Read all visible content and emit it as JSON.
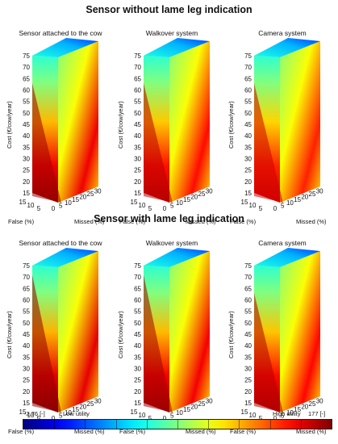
{
  "chart_data": {
    "type": "3d-surface",
    "groups": [
      {
        "title": "Sensor without lame leg indication",
        "panels": [
          {
            "title": "Sensor attached to the cow",
            "peak_utility": 0.95,
            "peak_x": 0.0,
            "peak_z": 0.2
          },
          {
            "title": "Walkover system",
            "peak_utility": 0.82,
            "peak_x": 0.0,
            "peak_z": 0.2
          },
          {
            "title": "Camera system",
            "peak_utility": 0.72,
            "peak_x": 0.0,
            "peak_z": 0.2
          }
        ]
      },
      {
        "title": "Sensor with lame leg indication",
        "panels": [
          {
            "title": "Sensor attached to the cow",
            "peak_utility": 1.0,
            "peak_x": 0.0,
            "peak_z": 0.95
          },
          {
            "title": "Walkover system",
            "peak_utility": 0.93,
            "peak_x": 0.0,
            "peak_z": 0.95
          },
          {
            "title": "Camera system",
            "peak_utility": 0.85,
            "peak_x": 0.0,
            "peak_z": 0.2
          }
        ]
      }
    ],
    "axes": {
      "cost": {
        "label": "Cost (€/cow/year)",
        "ticks": [
          "15",
          "20",
          "25",
          "30",
          "35",
          "40",
          "45",
          "50",
          "55",
          "60",
          "65",
          "70",
          "75"
        ],
        "range": [
          15,
          75
        ]
      },
      "false": {
        "label": "False (%)",
        "ticks": [
          "5",
          "10",
          "15"
        ],
        "range": [
          0,
          15
        ]
      },
      "missed": {
        "label": "Missed (%)",
        "ticks": [
          "0",
          "5",
          "10",
          "15",
          "20",
          "25",
          "30"
        ],
        "range": [
          0,
          30
        ]
      }
    },
    "colorbar": {
      "min_label": "-2.76 [-]",
      "low_label": "Low utility",
      "high_label": "High utility",
      "max_label": "177 [-]",
      "min": -2.76,
      "max": 177
    }
  }
}
